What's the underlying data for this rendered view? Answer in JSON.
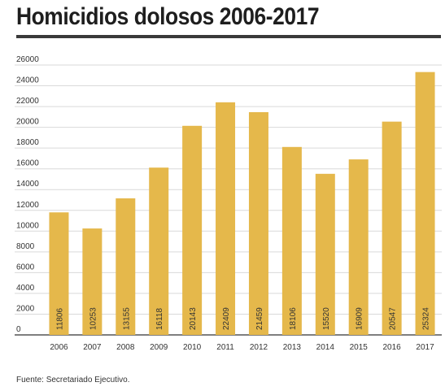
{
  "title": "Homicidios dolosos 2006-2017",
  "source": "Fuente: Secretariado Ejecutivo.",
  "chart_data": {
    "type": "bar",
    "categories": [
      "2006",
      "2007",
      "2008",
      "2009",
      "2010",
      "2011",
      "2012",
      "2013",
      "2014",
      "2015",
      "2016",
      "2017"
    ],
    "values": [
      11806,
      10253,
      13155,
      16118,
      20143,
      22409,
      21459,
      18106,
      15520,
      16909,
      20547,
      25324
    ],
    "title": "Homicidios dolosos 2006-2017",
    "xlabel": "",
    "ylabel": "",
    "ylim": [
      0,
      26000
    ],
    "yticks": [
      0,
      2000,
      4000,
      6000,
      8000,
      10000,
      12000,
      14000,
      16000,
      18000,
      20000,
      22000,
      24000,
      26000
    ],
    "grid": true,
    "legend": "none",
    "bar_color": "#e5b84b",
    "data_labels": "vertical-inside-bottom"
  }
}
